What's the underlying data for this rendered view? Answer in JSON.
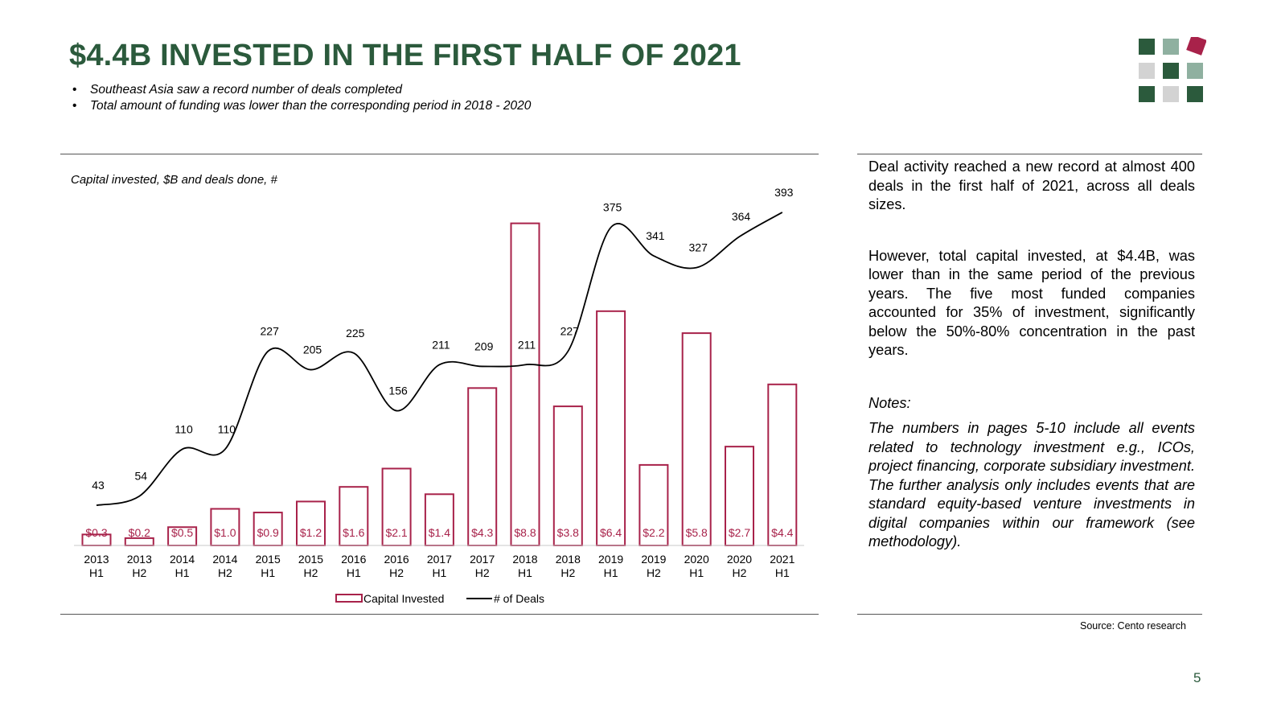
{
  "title": "$4.4B INVESTED IN THE FIRST HALF OF 2021",
  "bullets": [
    "Southeast Asia saw a record number of deals completed",
    "Total amount of funding was lower than the corresponding period in 2018 - 2020"
  ],
  "chart_subtitle": "Capital invested, $B and deals done, #",
  "chart_data": {
    "type": "bar",
    "title": "Capital invested, $B and deals done, #",
    "categories": [
      "2013 H1",
      "2013 H2",
      "2014 H1",
      "2014 H2",
      "2015 H1",
      "2015 H2",
      "2016 H1",
      "2016 H2",
      "2017 H1",
      "2017 H2",
      "2018 H1",
      "2018 H2",
      "2019 H1",
      "2019 H2",
      "2020 H1",
      "2020 H2",
      "2021 H1"
    ],
    "series": [
      {
        "name": "Capital Invested",
        "type": "bar",
        "values": [
          0.3,
          0.2,
          0.5,
          1.0,
          0.9,
          1.2,
          1.6,
          2.1,
          1.4,
          4.3,
          8.8,
          3.8,
          6.4,
          2.2,
          5.8,
          2.7,
          4.4
        ],
        "labels": [
          "$0.3",
          "$0.2",
          "$0.5",
          "$1.0",
          "$0.9",
          "$1.2",
          "$1.6",
          "$2.1",
          "$1.4",
          "$4.3",
          "$8.8",
          "$3.8",
          "$6.4",
          "$2.2",
          "$5.8",
          "$2.7",
          "$4.4"
        ],
        "color": "#a8224a"
      },
      {
        "name": "# of Deals",
        "type": "line",
        "values": [
          43,
          54,
          110,
          110,
          227,
          205,
          225,
          156,
          211,
          209,
          211,
          227,
          375,
          341,
          327,
          364,
          393
        ],
        "color": "#000000"
      }
    ],
    "legend_position": "bottom",
    "grid": false
  },
  "side": {
    "p1": "Deal activity reached a new record at almost 400 deals in the first half of 2021, across all deals sizes.",
    "p2": "However, total capital invested, at $4.4B, was lower than in the same period of the previous years. The five most funded companies accounted for 35% of investment, significantly below the 50%-80% concentration in the past years.",
    "notes_head": "Notes:",
    "notes": "The numbers in pages 5-10 include all events related to technology investment e.g., ICOs, project financing, corporate subsidiary investment. The further analysis only includes events that are standard equity-based venture investments in digital companies within our framework (see methodology)."
  },
  "source": "Source: Cento research",
  "page_number": "5",
  "colors": {
    "brand_green": "#2b5a3c",
    "light_green": "#8fb0a0",
    "light_gray": "#d3d3d3",
    "accent_red": "#a8224a"
  },
  "logo": {
    "icon": "grid-squares-logo"
  }
}
